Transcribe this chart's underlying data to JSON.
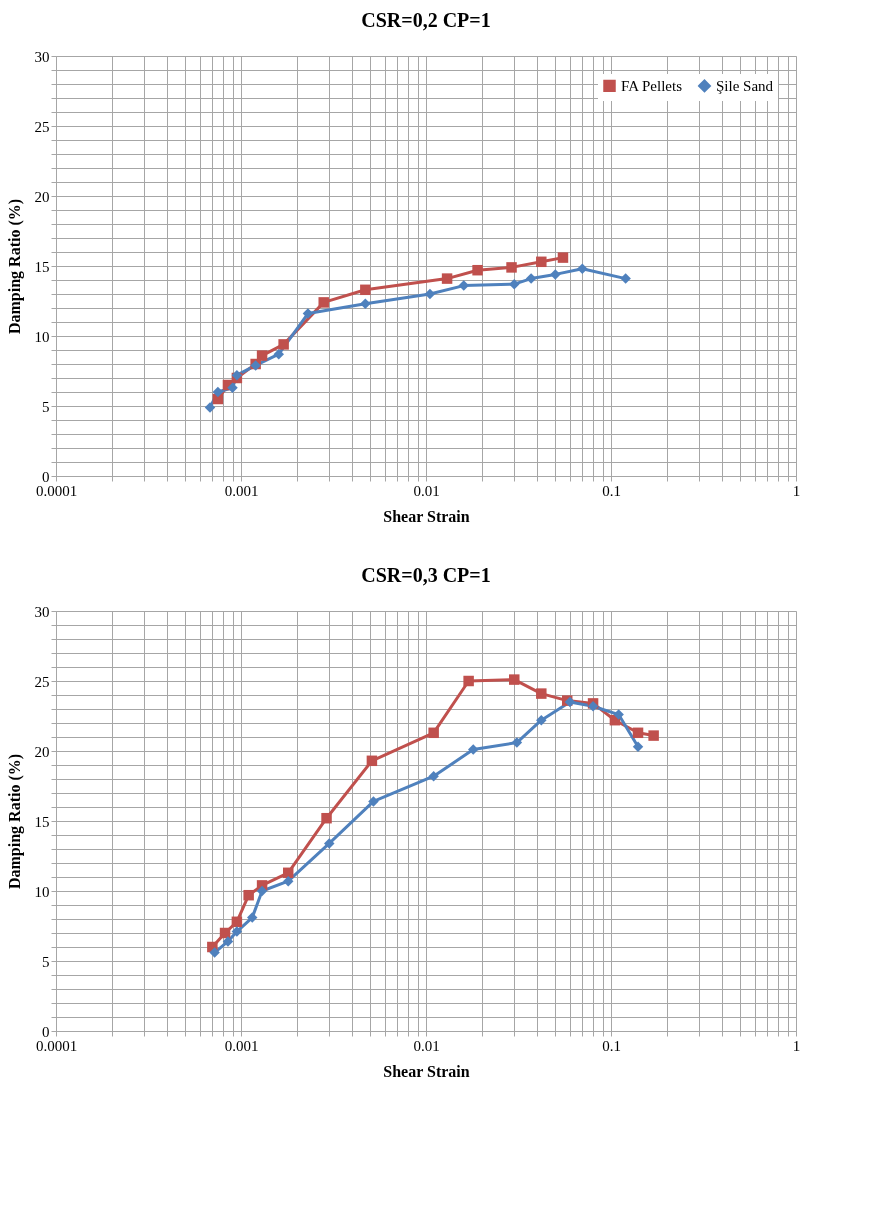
{
  "chart_data": [
    {
      "type": "line",
      "title": "CSR=0,2  CP=1",
      "xlabel": "Shear Strain",
      "ylabel": "Damping Ratio (%)",
      "log": "x",
      "grid": true,
      "legend": "top right",
      "line_style": "solid",
      "xlim": [
        0.0001,
        1
      ],
      "ylim": [
        0,
        30
      ],
      "xticks": [
        0.0001,
        {
          "value": 0.0002,
          "label": null
        },
        {
          "value": 0.0003,
          "label": null
        },
        {
          "value": 0.0004,
          "label": null
        },
        {
          "value": 0.0005,
          "label": null
        },
        {
          "value": 0.0006,
          "label": null
        },
        {
          "value": 0.0007,
          "label": null
        },
        {
          "value": 0.0008,
          "label": null
        },
        {
          "value": 0.0009,
          "label": null
        },
        0.001,
        {
          "value": 0.002,
          "label": null
        },
        {
          "value": 0.003,
          "label": null
        },
        {
          "value": 0.004,
          "label": null
        },
        {
          "value": 0.005,
          "label": null
        },
        {
          "value": 0.006,
          "label": null
        },
        {
          "value": 0.007,
          "label": null
        },
        {
          "value": 0.008,
          "label": null
        },
        {
          "value": 0.009,
          "label": null
        },
        0.01,
        {
          "value": 0.02,
          "label": null
        },
        {
          "value": 0.03,
          "label": null
        },
        {
          "value": 0.04,
          "label": null
        },
        {
          "value": 0.05,
          "label": null
        },
        {
          "value": 0.06,
          "label": null
        },
        {
          "value": 0.07,
          "label": null
        },
        {
          "value": 0.08,
          "label": null
        },
        {
          "value": 0.09,
          "label": null
        },
        0.1,
        {
          "value": 0.2,
          "label": null
        },
        {
          "value": 0.3,
          "label": null
        },
        {
          "value": 0.4,
          "label": null
        },
        {
          "value": 0.5,
          "label": null
        },
        {
          "value": 0.6,
          "label": null
        },
        {
          "value": 0.7,
          "label": null
        },
        {
          "value": 0.8,
          "label": null
        },
        {
          "value": 0.9,
          "label": null
        },
        1
      ],
      "yticks": [
        0,
        {
          "value": 1,
          "label": null
        },
        {
          "value": 2,
          "label": null
        },
        {
          "value": 3,
          "label": null
        },
        {
          "value": 4,
          "label": null
        },
        5,
        {
          "value": 6,
          "label": null
        },
        {
          "value": 7,
          "label": null
        },
        {
          "value": 8,
          "label": null
        },
        {
          "value": 9,
          "label": null
        },
        10,
        {
          "value": 11,
          "label": null
        },
        {
          "value": 12,
          "label": null
        },
        {
          "value": 13,
          "label": null
        },
        {
          "value": 14,
          "label": null
        },
        15,
        {
          "value": 16,
          "label": null
        },
        {
          "value": 17,
          "label": null
        },
        {
          "value": 18,
          "label": null
        },
        {
          "value": 19,
          "label": null
        },
        20,
        {
          "value": 21,
          "label": null
        },
        {
          "value": 22,
          "label": null
        },
        {
          "value": 23,
          "label": null
        },
        {
          "value": 24,
          "label": null
        },
        25,
        {
          "value": 26,
          "label": null
        },
        {
          "value": 27,
          "label": null
        },
        {
          "value": 28,
          "label": null
        },
        {
          "value": 29,
          "label": null
        },
        30
      ],
      "series": [
        {
          "name": "FA Pellets",
          "color": "#c0504d",
          "marker": "square",
          "x": [
            0.00075,
            0.00085,
            0.00095,
            0.0012,
            0.0013,
            0.0017,
            0.0028,
            0.0047,
            0.013,
            0.019,
            0.029,
            0.042,
            0.055
          ],
          "values": [
            5.5,
            6.5,
            7.0,
            8.0,
            8.6,
            9.4,
            12.4,
            13.3,
            14.1,
            14.7,
            14.9,
            15.3,
            15.6
          ]
        },
        {
          "name": "Şile Sand",
          "color": "#4f81bd",
          "marker": "diamond",
          "x": [
            0.00068,
            0.00075,
            0.0009,
            0.00095,
            0.0012,
            0.0016,
            0.0023,
            0.0047,
            0.0105,
            0.016,
            0.03,
            0.037,
            0.05,
            0.07,
            0.12
          ],
          "values": [
            4.9,
            6.0,
            6.3,
            7.2,
            7.9,
            8.7,
            11.6,
            12.3,
            13.0,
            13.6,
            13.7,
            14.1,
            14.4,
            14.8,
            14.1
          ]
        }
      ]
    },
    {
      "type": "line",
      "title": "CSR=0,3  CP=1",
      "xlabel": "Shear Strain",
      "ylabel": "Damping Ratio (%)",
      "log": "x",
      "grid": true,
      "legend": "top right",
      "line_style": "solid",
      "xlim": [
        0.0001,
        1
      ],
      "ylim": [
        0,
        30
      ],
      "xticks": [
        0.0001,
        {
          "value": 0.0002,
          "label": null
        },
        {
          "value": 0.0003,
          "label": null
        },
        {
          "value": 0.0004,
          "label": null
        },
        {
          "value": 0.0005,
          "label": null
        },
        {
          "value": 0.0006,
          "label": null
        },
        {
          "value": 0.0007,
          "label": null
        },
        {
          "value": 0.0008,
          "label": null
        },
        {
          "value": 0.0009,
          "label": null
        },
        0.001,
        {
          "value": 0.002,
          "label": null
        },
        {
          "value": 0.003,
          "label": null
        },
        {
          "value": 0.004,
          "label": null
        },
        {
          "value": 0.005,
          "label": null
        },
        {
          "value": 0.006,
          "label": null
        },
        {
          "value": 0.007,
          "label": null
        },
        {
          "value": 0.008,
          "label": null
        },
        {
          "value": 0.009,
          "label": null
        },
        0.01,
        {
          "value": 0.02,
          "label": null
        },
        {
          "value": 0.03,
          "label": null
        },
        {
          "value": 0.04,
          "label": null
        },
        {
          "value": 0.05,
          "label": null
        },
        {
          "value": 0.06,
          "label": null
        },
        {
          "value": 0.07,
          "label": null
        },
        {
          "value": 0.08,
          "label": null
        },
        {
          "value": 0.09,
          "label": null
        },
        0.1,
        {
          "value": 0.2,
          "label": null
        },
        {
          "value": 0.3,
          "label": null
        },
        {
          "value": 0.4,
          "label": null
        },
        {
          "value": 0.5,
          "label": null
        },
        {
          "value": 0.6,
          "label": null
        },
        {
          "value": 0.7,
          "label": null
        },
        {
          "value": 0.8,
          "label": null
        },
        {
          "value": 0.9,
          "label": null
        },
        1
      ],
      "yticks": [
        0,
        {
          "value": 1,
          "label": null
        },
        {
          "value": 2,
          "label": null
        },
        {
          "value": 3,
          "label": null
        },
        {
          "value": 4,
          "label": null
        },
        5,
        {
          "value": 6,
          "label": null
        },
        {
          "value": 7,
          "label": null
        },
        {
          "value": 8,
          "label": null
        },
        {
          "value": 9,
          "label": null
        },
        10,
        {
          "value": 11,
          "label": null
        },
        {
          "value": 12,
          "label": null
        },
        {
          "value": 13,
          "label": null
        },
        {
          "value": 14,
          "label": null
        },
        15,
        {
          "value": 16,
          "label": null
        },
        {
          "value": 17,
          "label": null
        },
        {
          "value": 18,
          "label": null
        },
        {
          "value": 19,
          "label": null
        },
        20,
        {
          "value": 21,
          "label": null
        },
        {
          "value": 22,
          "label": null
        },
        {
          "value": 23,
          "label": null
        },
        {
          "value": 24,
          "label": null
        },
        25,
        {
          "value": 26,
          "label": null
        },
        {
          "value": 27,
          "label": null
        },
        {
          "value": 28,
          "label": null
        },
        {
          "value": 29,
          "label": null
        },
        30
      ],
      "series": [
        {
          "name": "FA Pellets",
          "color": "#c0504d",
          "marker": "square",
          "x": [
            0.0007,
            0.00082,
            0.00095,
            0.0011,
            0.0013,
            0.0018,
            0.0029,
            0.0051,
            0.011,
            0.017,
            0.03,
            0.042,
            0.058,
            0.08,
            0.105,
            0.14,
            0.17
          ],
          "values": [
            6.0,
            7.0,
            7.8,
            9.7,
            10.4,
            11.3,
            15.2,
            19.3,
            21.3,
            25.0,
            25.1,
            24.1,
            23.6,
            23.4,
            22.2,
            21.3,
            21.1
          ]
        },
        {
          "name": "Şile Sand",
          "color": "#4f81bd",
          "marker": "diamond",
          "x": [
            0.00072,
            0.00085,
            0.00095,
            0.00115,
            0.0013,
            0.0018,
            0.003,
            0.0052,
            0.011,
            0.018,
            0.031,
            0.042,
            0.06,
            0.08,
            0.11,
            0.14
          ],
          "values": [
            5.6,
            6.4,
            7.1,
            8.1,
            10.0,
            10.7,
            13.4,
            16.4,
            18.2,
            20.1,
            20.6,
            22.2,
            23.5,
            23.2,
            22.6,
            20.3
          ]
        }
      ]
    }
  ]
}
